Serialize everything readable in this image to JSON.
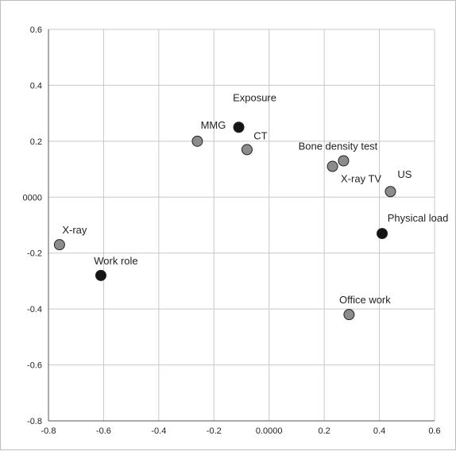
{
  "chart_data": {
    "type": "scatter",
    "title": "",
    "xlabel": "",
    "ylabel": "",
    "xlim": [
      -0.8,
      0.6
    ],
    "ylim": [
      -0.8,
      0.6
    ],
    "grid": true,
    "x_ticks": [
      {
        "value": -0.8,
        "label": "-0.8"
      },
      {
        "value": -0.6,
        "label": "-0.6"
      },
      {
        "value": -0.4,
        "label": "-0.4"
      },
      {
        "value": -0.2,
        "label": "-0.2"
      },
      {
        "value": 0.0,
        "label": "0.0000"
      },
      {
        "value": 0.2,
        "label": "0.2"
      },
      {
        "value": 0.4,
        "label": "0.4"
      },
      {
        "value": 0.6,
        "label": "0.6"
      }
    ],
    "y_ticks": [
      {
        "value": 0.6,
        "label": "0.6"
      },
      {
        "value": 0.4,
        "label": "0.4"
      },
      {
        "value": 0.2,
        "label": "0.2"
      },
      {
        "value": 0.0,
        "label": "0000"
      },
      {
        "value": -0.2,
        "label": "-0.2"
      },
      {
        "value": -0.4,
        "label": "-0.4"
      },
      {
        "value": -0.6,
        "label": "-0.6"
      },
      {
        "value": -0.8,
        "label": "-0.8"
      }
    ],
    "colors": {
      "grid": "#c8c8c8",
      "axis": "#555555",
      "gray_marker": "#8c8c8c",
      "black_marker": "#151515",
      "marker_stroke": "#222222",
      "text": "#222222"
    },
    "series": [
      {
        "marker": "black",
        "points": [
          {
            "label": "Exposure",
            "x": -0.11,
            "y": 0.25
          },
          {
            "label": "Physical load",
            "x": 0.41,
            "y": -0.13
          },
          {
            "label": "Work role",
            "x": -0.61,
            "y": -0.28
          }
        ]
      },
      {
        "marker": "gray",
        "points": [
          {
            "label": "MMG",
            "x": -0.26,
            "y": 0.2
          },
          {
            "label": "CT",
            "x": -0.08,
            "y": 0.17
          },
          {
            "label": "Bone density test",
            "x": 0.27,
            "y": 0.13
          },
          {
            "label": "X-ray TV",
            "x": 0.23,
            "y": 0.11
          },
          {
            "label": "US",
            "x": 0.44,
            "y": 0.02
          },
          {
            "label": "X-ray",
            "x": -0.76,
            "y": -0.17
          },
          {
            "label": "Office work",
            "x": 0.29,
            "y": -0.42
          }
        ]
      }
    ]
  }
}
